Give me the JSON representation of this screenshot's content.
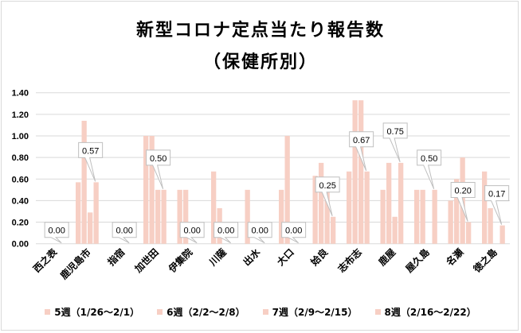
{
  "chart_data": {
    "type": "bar",
    "title": "新型コロナ定点当たり報告数",
    "subtitle": "（保健所別）",
    "categories": [
      "西之表",
      "鹿児島市",
      "指宿",
      "加世田",
      "伊集院",
      "川薩",
      "出水",
      "大口",
      "姶良",
      "志布志",
      "鹿屋",
      "屋久島",
      "名瀬",
      "徳之島"
    ],
    "series": [
      {
        "name": "5週（1/26～2/1）",
        "values": [
          0,
          0.57,
          0,
          1.0,
          0.5,
          0.67,
          0.5,
          0.5,
          0.63,
          0.67,
          0.5,
          0.5,
          0.4,
          0.67
        ]
      },
      {
        "name": "6週（2/2～2/8）",
        "values": [
          0,
          1.14,
          0,
          1.0,
          0.5,
          0.33,
          0,
          1.0,
          0.75,
          1.33,
          0.75,
          0.5,
          0.6,
          0.33
        ]
      },
      {
        "name": "7週（2/9～2/15）",
        "values": [
          0,
          0.29,
          0,
          0.5,
          0,
          0,
          0,
          0,
          0.5,
          1.33,
          0.25,
          0,
          0.8,
          0
        ]
      },
      {
        "name": "8週（2/16～2/22）",
        "values": [
          0,
          0.57,
          0,
          0.5,
          0,
          0,
          0,
          0,
          0.25,
          0.67,
          0.75,
          0.5,
          0.2,
          0.17
        ]
      }
    ],
    "data_labels_series": "8週（2/16～2/22）",
    "data_labels": [
      "0.00",
      "0.57",
      "0.00",
      "0.50",
      "0.00",
      "0.00",
      "0.00",
      "0.00",
      "0.25",
      "0.67",
      "0.75",
      "0.50",
      "0.20",
      "0.17"
    ],
    "yticks": [
      "0.00",
      "0.20",
      "0.40",
      "0.60",
      "0.80",
      "1.00",
      "1.20",
      "1.40"
    ],
    "ylim": [
      0,
      1.4
    ],
    "grid": true,
    "legend_position": "bottom",
    "colors": {
      "bar": "#f7cfc4",
      "grid": "#d9d9d9",
      "callout_border": "#bfbfbf"
    }
  }
}
